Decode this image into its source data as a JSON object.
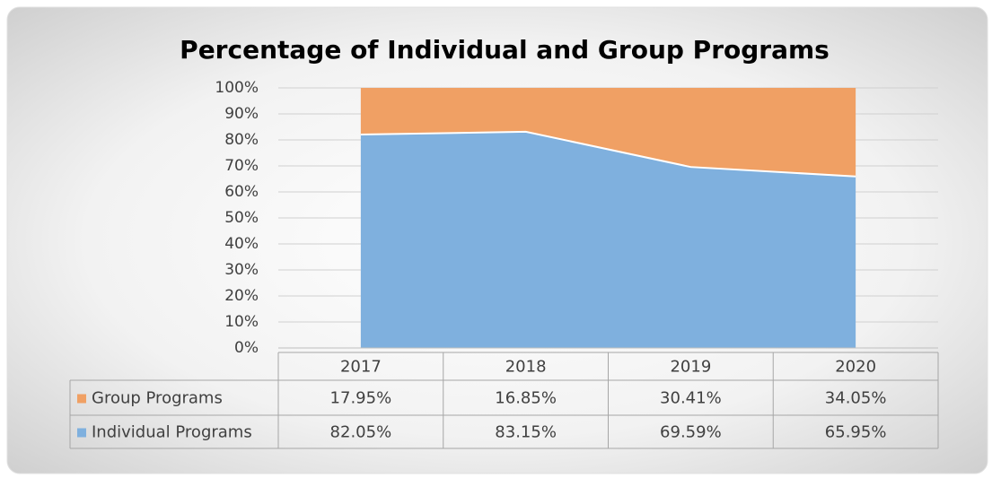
{
  "chart_data": {
    "type": "stacked-area",
    "title": "Percentage of Individual and Group Programs",
    "categories": [
      "2017",
      "2018",
      "2019",
      "2020"
    ],
    "series": [
      {
        "name": "Group Programs",
        "color": "#f0a064",
        "values": [
          17.95,
          16.85,
          30.41,
          34.05
        ],
        "value_labels": [
          "17.95%",
          "16.85%",
          "30.41%",
          "34.05%"
        ]
      },
      {
        "name": "Individual Programs",
        "color": "#7fb0de",
        "values": [
          82.05,
          83.15,
          69.59,
          65.95
        ],
        "value_labels": [
          "82.05%",
          "83.15%",
          "69.59%",
          "65.95%"
        ]
      }
    ],
    "ylim": [
      0,
      100
    ],
    "yticks": [
      {
        "value": 0,
        "label": "0%"
      },
      {
        "value": 10,
        "label": "10%"
      },
      {
        "value": 20,
        "label": "20%"
      },
      {
        "value": 30,
        "label": "30%"
      },
      {
        "value": 40,
        "label": "40%"
      },
      {
        "value": 50,
        "label": "50%"
      },
      {
        "value": 60,
        "label": "60%"
      },
      {
        "value": 70,
        "label": "70%"
      },
      {
        "value": 80,
        "label": "80%"
      },
      {
        "value": 90,
        "label": "90%"
      },
      {
        "value": 100,
        "label": "100%"
      }
    ],
    "grid": true
  }
}
